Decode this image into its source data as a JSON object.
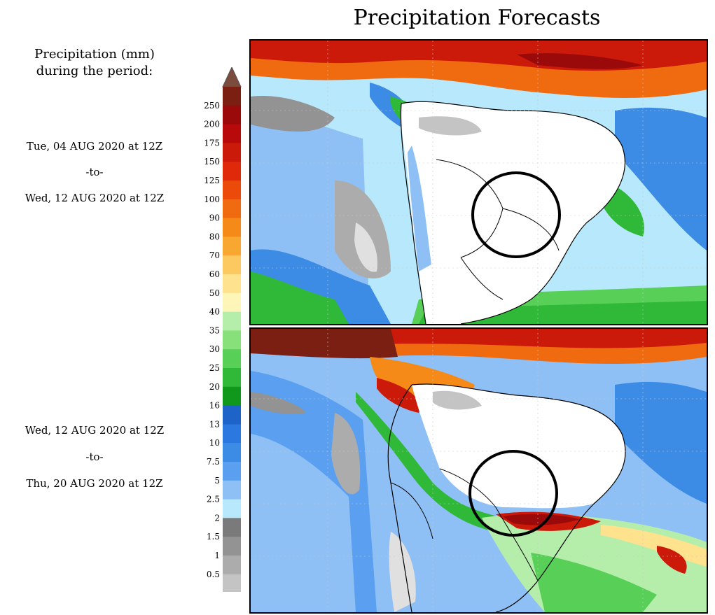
{
  "title": "Precipitation Forecasts",
  "legend": {
    "heading_line1": "Precipitation (mm)",
    "heading_line2": "during the period:"
  },
  "periods": [
    {
      "start": "Tue, 04 AUG 2020 at 12Z",
      "to": "-to-",
      "end": "Wed, 12 AUG 2020 at 12Z"
    },
    {
      "start": "Wed, 12 AUG 2020 at 12Z",
      "to": "-to-",
      "end": "Thu, 20 AUG 2020 at 12Z"
    }
  ],
  "colorbar": {
    "labels": [
      "250",
      "200",
      "175",
      "150",
      "125",
      "100",
      "90",
      "80",
      "70",
      "60",
      "50",
      "40",
      "35",
      "30",
      "25",
      "20",
      "16",
      "13",
      "10",
      "7.5",
      "5",
      "2.5",
      "2",
      "1.5",
      "1",
      "0.5"
    ],
    "colors": [
      "#7a1f12",
      "#9a0a0a",
      "#b80a0a",
      "#cc1a0a",
      "#e0280a",
      "#ec4a0a",
      "#f06a10",
      "#f58a18",
      "#f8a830",
      "#fcc860",
      "#fee28e",
      "#fdf6b8",
      "#b4eeaa",
      "#88e07a",
      "#58d058",
      "#30b838",
      "#10981c",
      "#1e64c8",
      "#2a78e0",
      "#3c8ce6",
      "#5a9ff0",
      "#8ec0f5",
      "#b7e8fb",
      "#7a7a7a",
      "#939393",
      "#acacac",
      "#c4c4c4",
      "#e0e0e0"
    ],
    "top_color": "#7b4c3e",
    "bottom_color": "#ffffff"
  },
  "panels": [
    {
      "name": "week1",
      "highlight": "circle"
    },
    {
      "name": "week2",
      "highlight": "circle"
    }
  ]
}
